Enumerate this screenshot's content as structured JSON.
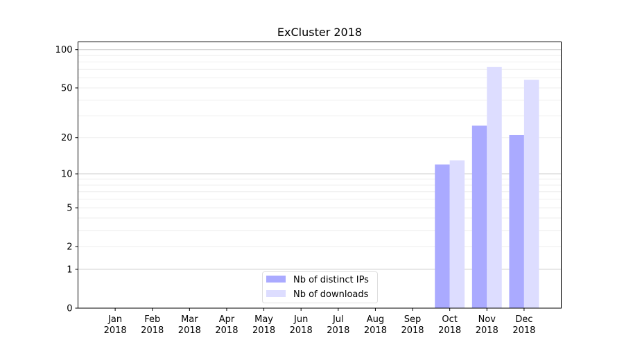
{
  "chart_data": {
    "type": "bar",
    "title": "ExCluster 2018",
    "xlabel": "",
    "ylabel": "",
    "yscale": "log(1+y)",
    "ylim": [
      0,
      115
    ],
    "yticks": [
      0,
      1,
      2,
      5,
      10,
      20,
      50,
      100
    ],
    "grid": true,
    "legend_position": "lower-center",
    "categories": [
      "Jan\n2018",
      "Feb\n2018",
      "Mar\n2018",
      "Apr\n2018",
      "May\n2018",
      "Jun\n2018",
      "Jul\n2018",
      "Aug\n2018",
      "Sep\n2018",
      "Oct\n2018",
      "Nov\n2018",
      "Dec\n2018"
    ],
    "series": [
      {
        "name": "Nb of distinct IPs",
        "color": "#aaaaff",
        "values": [
          0,
          0,
          0,
          0,
          0,
          0,
          0,
          0,
          0,
          12,
          25,
          21
        ]
      },
      {
        "name": "Nb of downloads",
        "color": "#ddddff",
        "values": [
          0,
          0,
          0,
          0,
          0,
          0,
          0,
          0,
          0,
          13,
          73,
          58
        ]
      }
    ]
  }
}
